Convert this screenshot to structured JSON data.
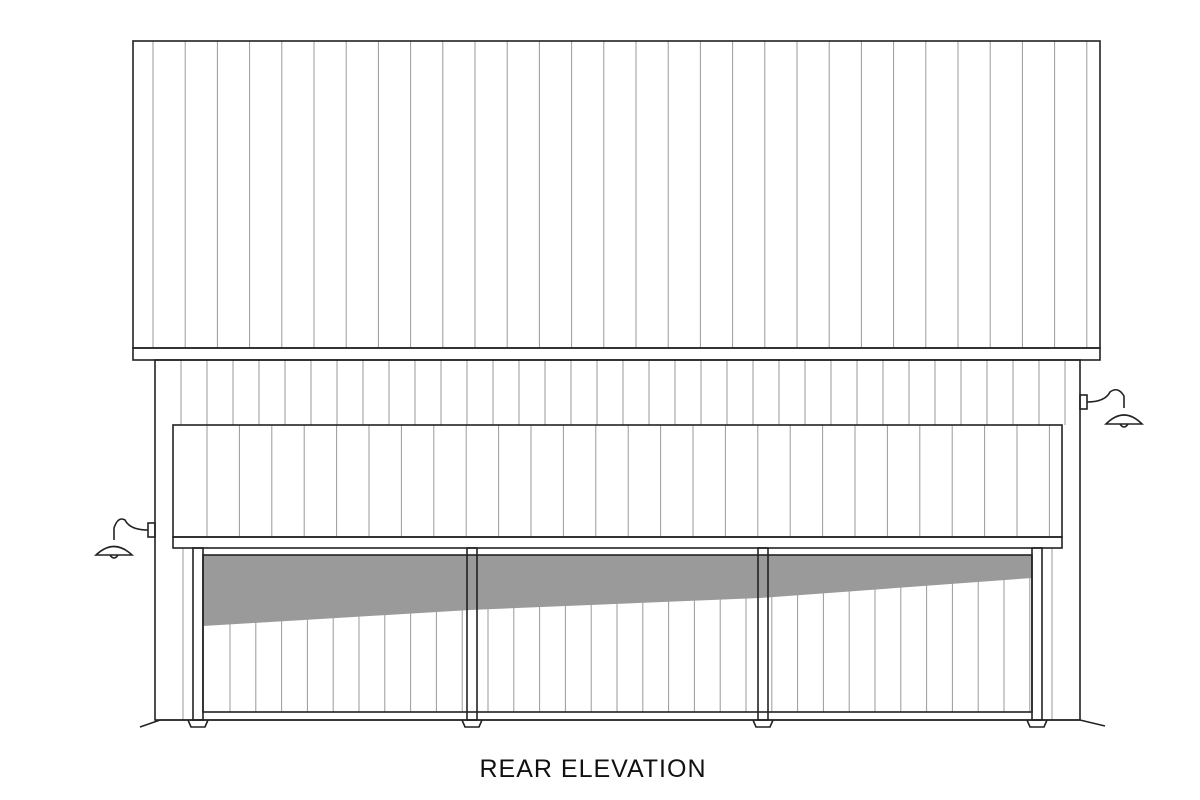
{
  "caption": "REAR ELEVATION"
}
